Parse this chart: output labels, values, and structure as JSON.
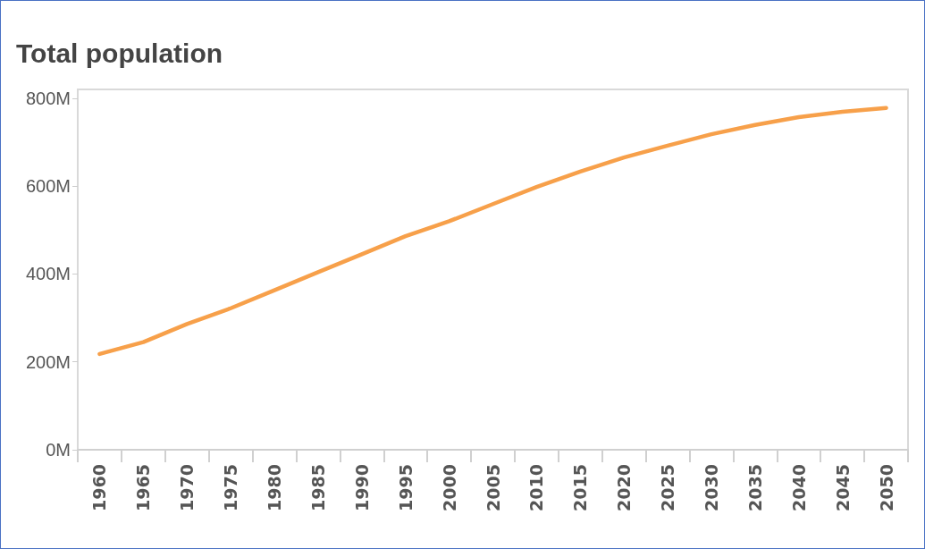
{
  "chart_data": {
    "type": "line",
    "title": "Total population",
    "categories": [
      "1960",
      "1965",
      "1970",
      "1975",
      "1980",
      "1985",
      "1990",
      "1995",
      "2000",
      "2005",
      "2010",
      "2015",
      "2020",
      "2025",
      "2030",
      "2035",
      "2040",
      "2045",
      "2050"
    ],
    "series": [
      {
        "color": "#f7a04a",
        "values": [
          218,
          245,
          286,
          322,
          363,
          404,
          445,
          486,
          520,
          559,
          598,
          633,
          665,
          692,
          718,
          739,
          757,
          769,
          778
        ]
      }
    ],
    "ylim": [
      0,
      820
    ],
    "yticks": [
      {
        "value": 0,
        "label": "0M"
      },
      {
        "value": 200,
        "label": "200M"
      },
      {
        "value": 400,
        "label": "400M"
      },
      {
        "value": 600,
        "label": "600M"
      },
      {
        "value": 800,
        "label": "800M"
      }
    ],
    "grid": false,
    "marker": "none",
    "line_style": "solid"
  }
}
